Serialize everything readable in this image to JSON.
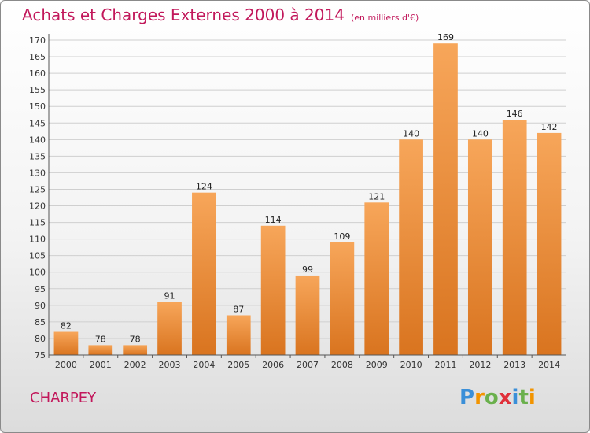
{
  "title": "Achats et Charges Externes 2000 à 2014",
  "subtitle": "(en milliers d'€)",
  "city": "CHARPEY",
  "logo": {
    "letters": [
      "P",
      "r",
      "o",
      "x",
      "i",
      "t",
      "i"
    ],
    "colors": [
      "#3a8fd8",
      "#f29400",
      "#6ab04c",
      "#e0303a",
      "#3a8fd8",
      "#6ab04c",
      "#f29400"
    ]
  },
  "colors": {
    "bar_top": "#f7a65a",
    "bar_bottom": "#d9741f",
    "title": "#c2185b"
  },
  "chart_data": {
    "type": "bar",
    "categories": [
      "2000",
      "2001",
      "2002",
      "2003",
      "2004",
      "2005",
      "2006",
      "2007",
      "2008",
      "2009",
      "2010",
      "2011",
      "2012",
      "2013",
      "2014"
    ],
    "values": [
      82,
      78,
      78,
      91,
      124,
      87,
      114,
      99,
      109,
      121,
      140,
      169,
      140,
      146,
      142
    ],
    "ylim": [
      75,
      170
    ],
    "yticks": [
      75,
      80,
      85,
      90,
      95,
      100,
      105,
      110,
      115,
      120,
      125,
      130,
      135,
      140,
      145,
      150,
      155,
      160,
      165,
      170
    ],
    "grid": true,
    "data_labels": true
  }
}
